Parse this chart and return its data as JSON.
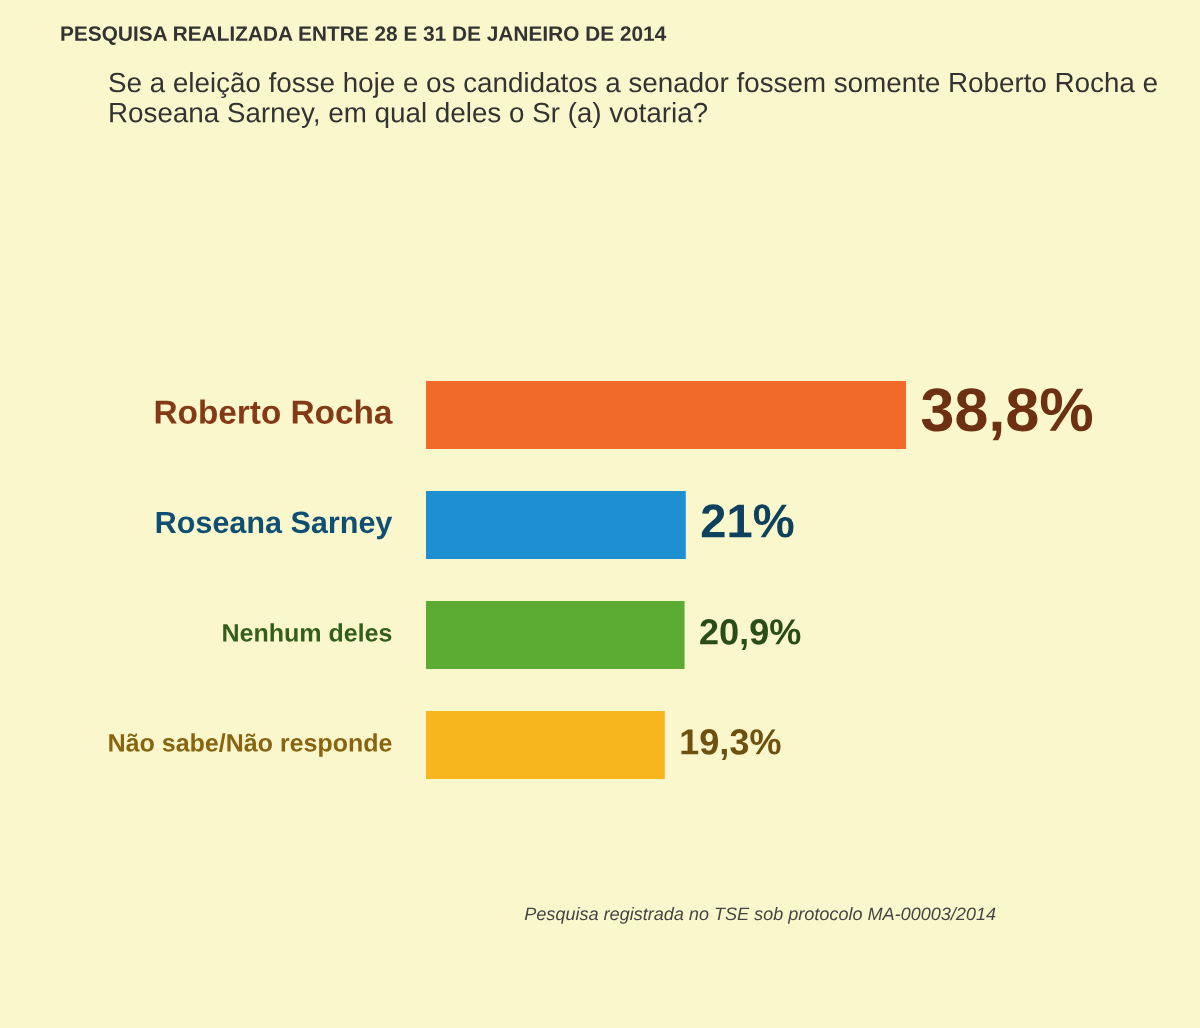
{
  "chart_data": {
    "type": "bar",
    "orientation": "horizontal",
    "title": "PESQUISA REALIZADA ENTRE 28 E 31 DE JANEIRO DE 2014",
    "subtitle": "Se a eleição fosse hoje e os candidatos a senador fossem somente Roberto Rocha e Roseana Sarney, em qual deles o Sr (a) votaria?",
    "categories": [
      "Roberto Rocha",
      "Roseana Sarney",
      "Nenhum deles",
      "Não sabe/Não responde"
    ],
    "values": [
      38.8,
      21,
      20.9,
      19.3
    ],
    "value_labels": [
      "38,8%",
      "21%",
      "20,9%",
      "19,3%"
    ],
    "colors": [
      "#f26a2a",
      "#1e90d2",
      "#5cab32",
      "#f7b51e"
    ],
    "annotations": [
      "Pesquisa registrada no TSE sob protocolo MA-00003/2014"
    ],
    "legend": false
  }
}
